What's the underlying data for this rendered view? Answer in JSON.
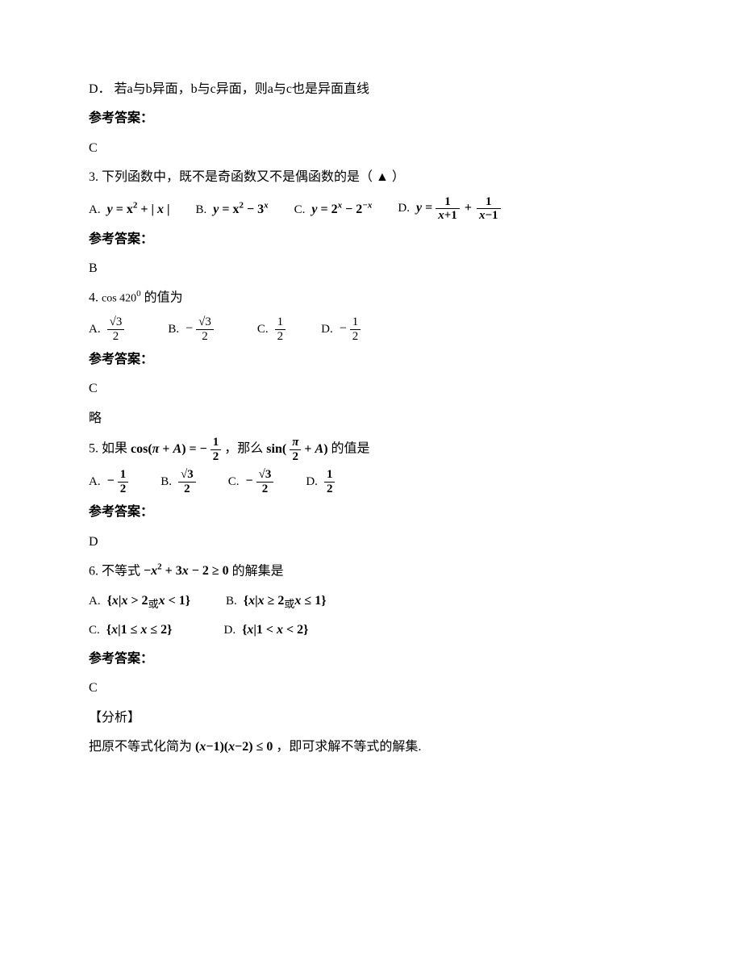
{
  "itemD": "D．  若a与b异面，b与c异面，则a与c也是异面直线",
  "ansLabel": "参考答案：",
  "ans2": "C",
  "q3": {
    "stem": "3. 下列函数中，既不是奇函数又不是偶函数的是（ ▲ ）",
    "A_label": "A.",
    "A_y": "y",
    "A_eq": "= x",
    "A_sup": "2",
    "A_plus": "+ |",
    "A_x2": "x",
    "A_end": "|",
    "B_label": "B.",
    "B_y": "y",
    "B_eq": "= x",
    "B_sup": "2",
    "B_minus": "− 3",
    "B_supX": "x",
    "C_label": "C.",
    "C_y": "y",
    "C_eq": "= 2",
    "C_supX": "x",
    "C_minus": " − 2",
    "C_supNX": "−x",
    "D_label": "D.",
    "D_y": "y",
    "D_eq": " =",
    "D_f1_num": "1",
    "D_f1_den_a": "x",
    "D_f1_den_plus": "+1",
    "D_plus": "+",
    "D_f2_num": "1",
    "D_f2_den_a": "x",
    "D_f2_den_minus": "−1"
  },
  "ans3": "B",
  "q4": {
    "stem_pre": "4. ",
    "cos": "cos 420",
    "deg": "0",
    "stem_post": "的值为",
    "A_label": "A.",
    "A_num": "√3",
    "A_den": "2",
    "B_label": "B.",
    "B_neg": "−",
    "B_num": "√3",
    "B_den": "2",
    "C_label": "C.",
    "C_num": "1",
    "C_den": "2",
    "D_label": "D.",
    "D_neg": "−",
    "D_num": "1",
    "D_den": "2"
  },
  "ans4": "C",
  "skip4": "略",
  "q5": {
    "stem_pre": "5. 如果",
    "lhs_cos": "cos(",
    "lhs_pi": "π",
    "lhs_plus": " + ",
    "lhs_A": "A",
    "lhs_close": ") = −",
    "lhs_num": "1",
    "lhs_den": "2",
    "stem_mid": "，那么",
    "rhs_sin": "sin(",
    "rhs_num": "π",
    "rhs_den": "2",
    "rhs_plus": " + ",
    "rhs_A": "A",
    "rhs_close": ")",
    "stem_post": "的值是",
    "A_label": "A.",
    "A_neg": "−",
    "A_num": "1",
    "A_den": "2",
    "B_label": "B.",
    "B_num": "√3",
    "B_den": "2",
    "C_label": "C.",
    "C_neg": "−",
    "C_num": "√3",
    "C_den": "2",
    "D_label": "D.",
    "D_num": "1",
    "D_den": "2"
  },
  "ans5": "D",
  "q6": {
    "stem_pre": "6. 不等式",
    "ineq_neg": "−",
    "ineq_x": "x",
    "ineq_sup": "2",
    "ineq_rest": " + 3",
    "ineq_x2": "x",
    "ineq_end": " − 2 ≥ 0",
    "stem_post": "的解集是",
    "A_label": "A.",
    "A_set_open": "{",
    "A_x1": "x",
    "A_bar": "|",
    "A_x2": "x",
    "A_gt": " > 2",
    "A_or": "或",
    "A_x3": "x",
    "A_lt": " < 1",
    "A_close": "}",
    "B_label": "B.",
    "B_set_open": "{",
    "B_x1": "x",
    "B_bar": "|",
    "B_x2": "x",
    "B_ge": " ≥ 2",
    "B_or": "或",
    "B_x3": "x",
    "B_le": " ≤ 1",
    "B_close": "}",
    "C_label": "C.",
    "C_set_open": "{",
    "C_x1": "x",
    "C_bar": "|",
    "C_body": "1 ≤ ",
    "C_x2": "x",
    "C_body2": " ≤ 2",
    "C_close": "}",
    "D_label": "D.",
    "D_set_open": "{",
    "D_x1": "x",
    "D_bar": "|",
    "D_body": "1 < ",
    "D_x2": "x",
    "D_body2": " < 2",
    "D_close": "}"
  },
  "ans6": "C",
  "analysisLabel": "【分析】",
  "analysis_pre": "把原不等式化简为",
  "analysis_open": "(",
  "analysis_x1": "x",
  "analysis_m1": "−1)(",
  "analysis_x2": "x",
  "analysis_m2": "−2) ≤ 0",
  "analysis_post": "，即可求解不等式的解集."
}
